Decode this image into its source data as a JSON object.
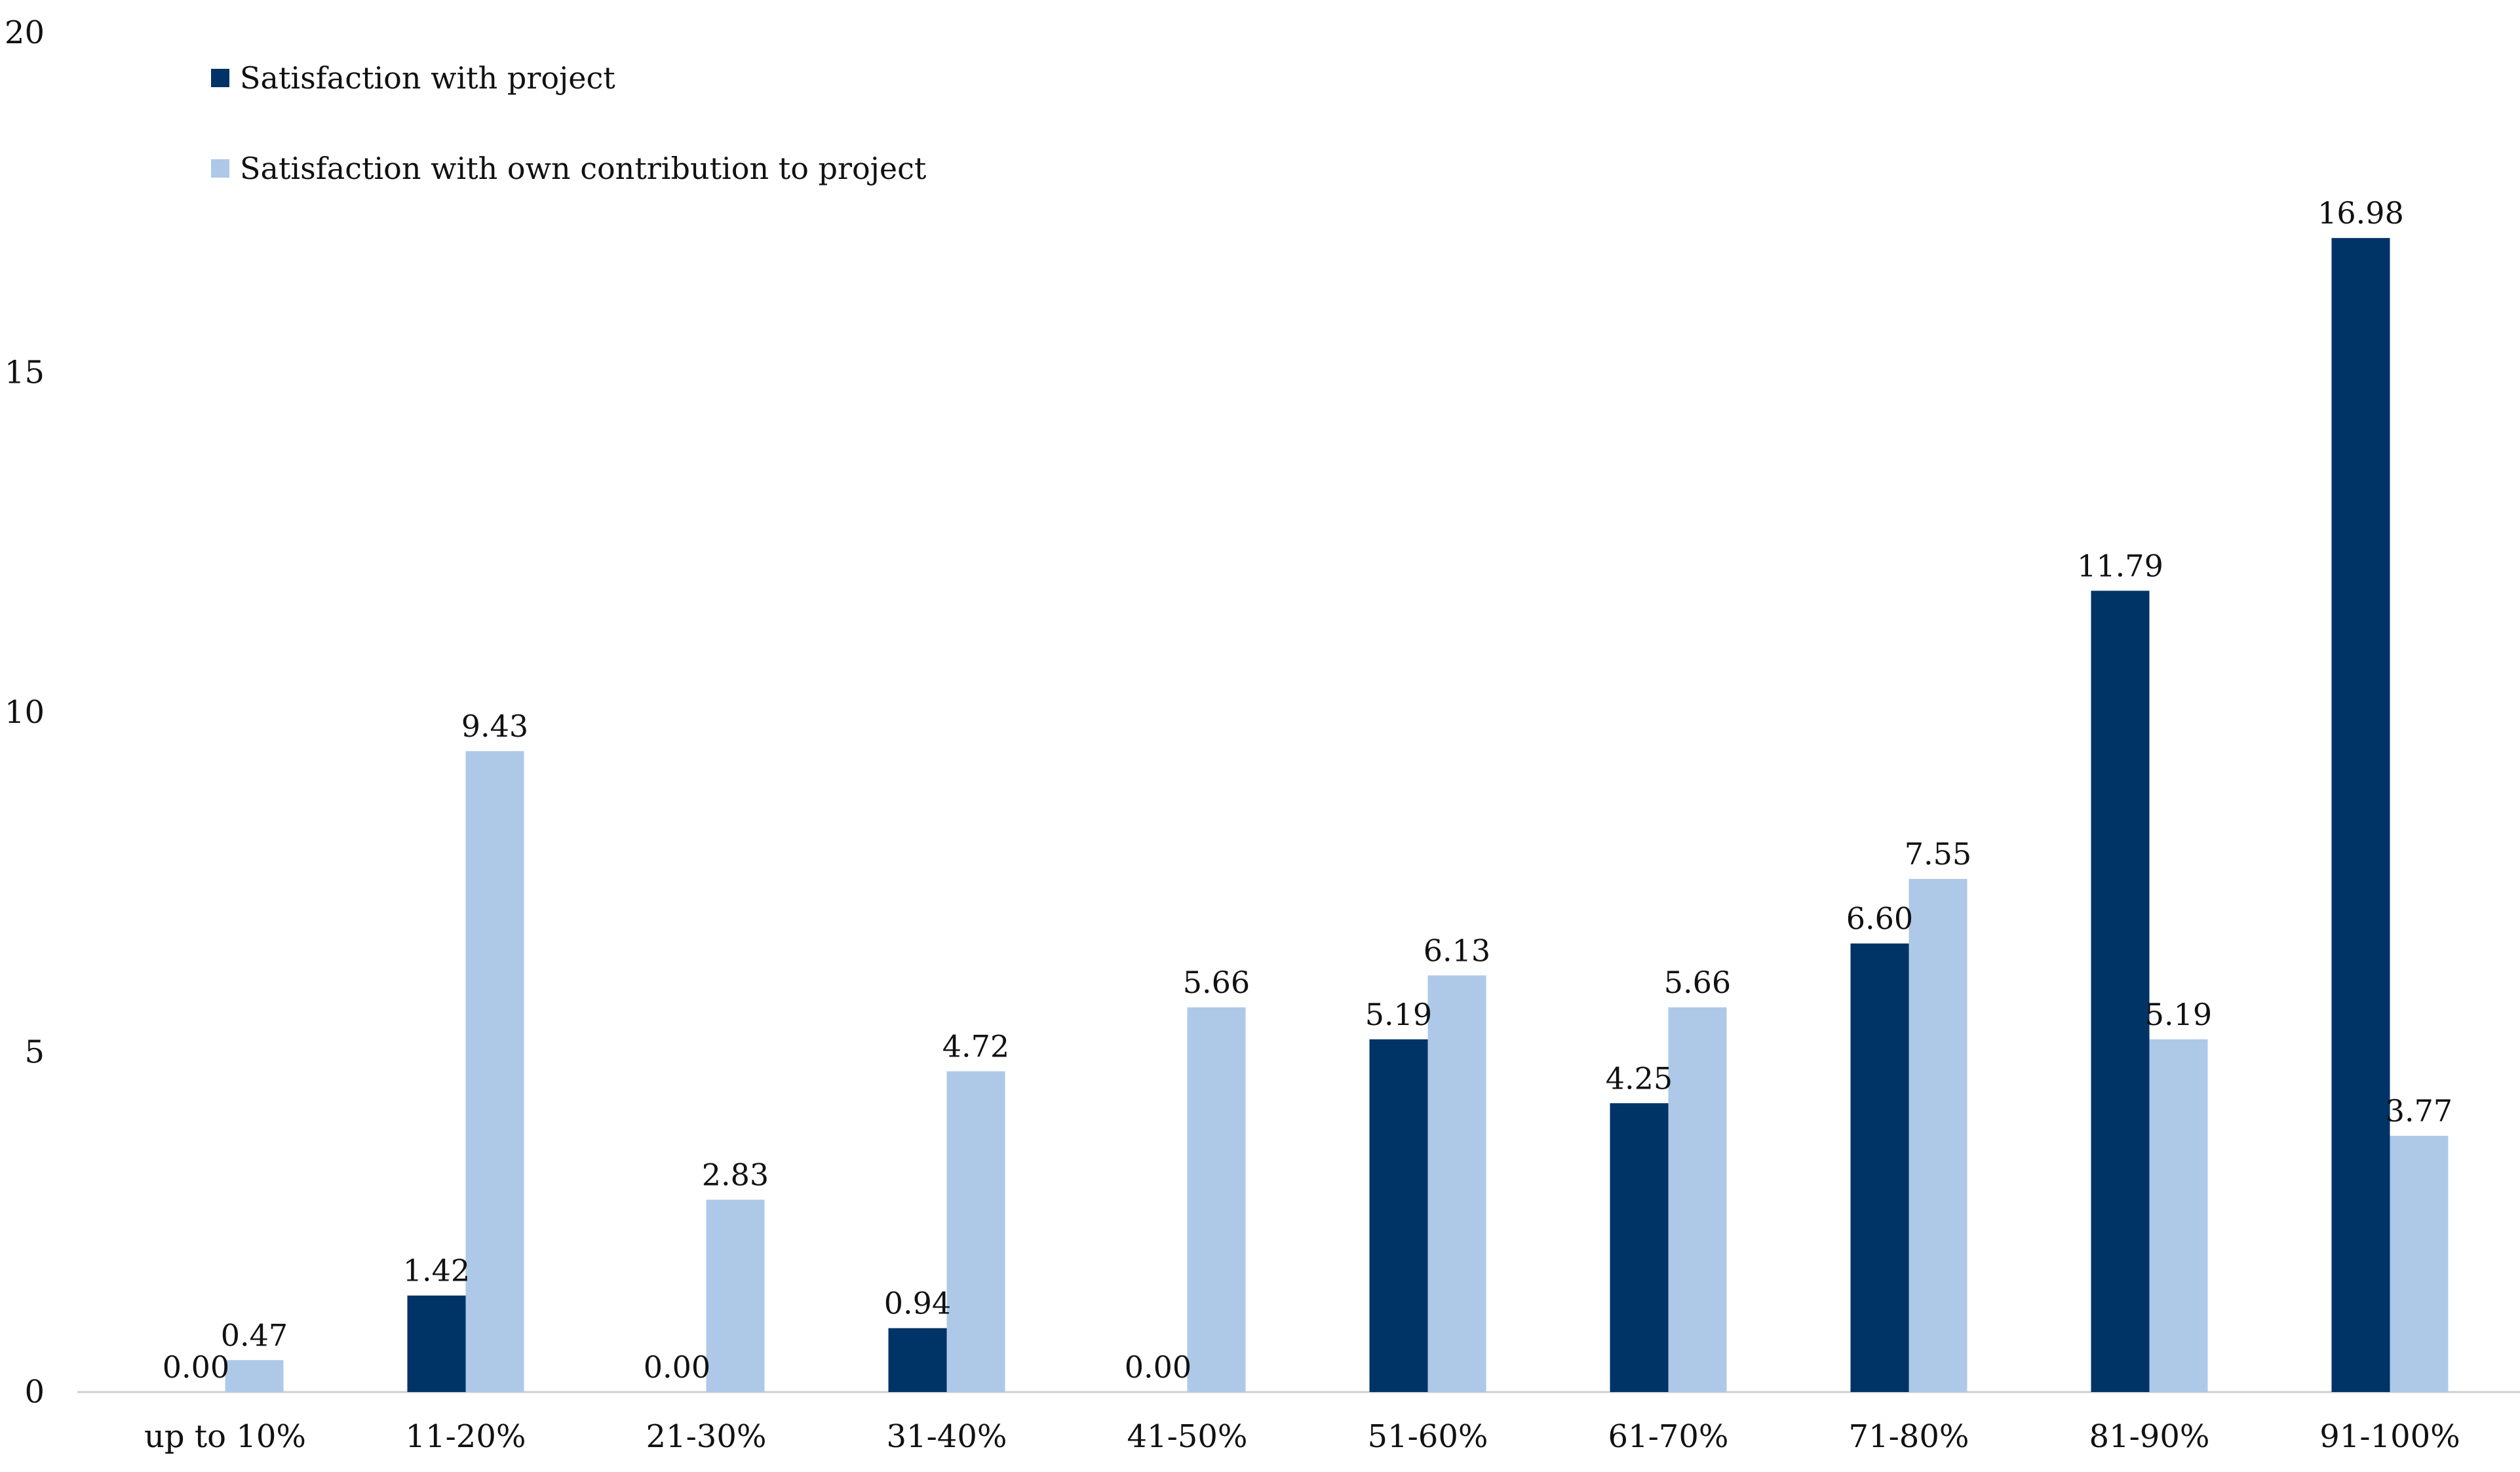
{
  "chart_data": {
    "type": "bar",
    "title": "",
    "xlabel": "",
    "ylabel": "",
    "ylim": [
      0,
      20
    ],
    "yticks": [
      0,
      5,
      10,
      15,
      20
    ],
    "ytick_labels": [
      "0",
      "5",
      "10",
      "15",
      "20"
    ],
    "grid": false,
    "legend_position": "top-left",
    "categories": [
      "up to 10%",
      "11-20%",
      "21-30%",
      "31-40%",
      "41-50%",
      "51-60%",
      "61-70%",
      "71-80%",
      "81-90%",
      "91-100%"
    ],
    "series": [
      {
        "name": "Satisfaction with project",
        "color": "#003366",
        "values": [
          0.0,
          1.42,
          0.0,
          0.94,
          0.0,
          5.19,
          4.25,
          6.6,
          11.79,
          16.98
        ],
        "labels": [
          "0.00",
          "1.42",
          "0.00",
          "0.94",
          "0.00",
          "5.19",
          "4.25",
          "6.60",
          "11.79",
          "16.98"
        ]
      },
      {
        "name": "Satisfaction with own contribution to project",
        "color": "#aec8e8",
        "values": [
          0.47,
          9.43,
          2.83,
          4.72,
          5.66,
          6.13,
          5.66,
          7.55,
          5.19,
          3.77
        ],
        "labels": [
          "0.47",
          "9.43",
          "2.83",
          "4.72",
          "5.66",
          "6.13",
          "5.66",
          "7.55",
          "5.19",
          "3.77"
        ]
      }
    ]
  }
}
